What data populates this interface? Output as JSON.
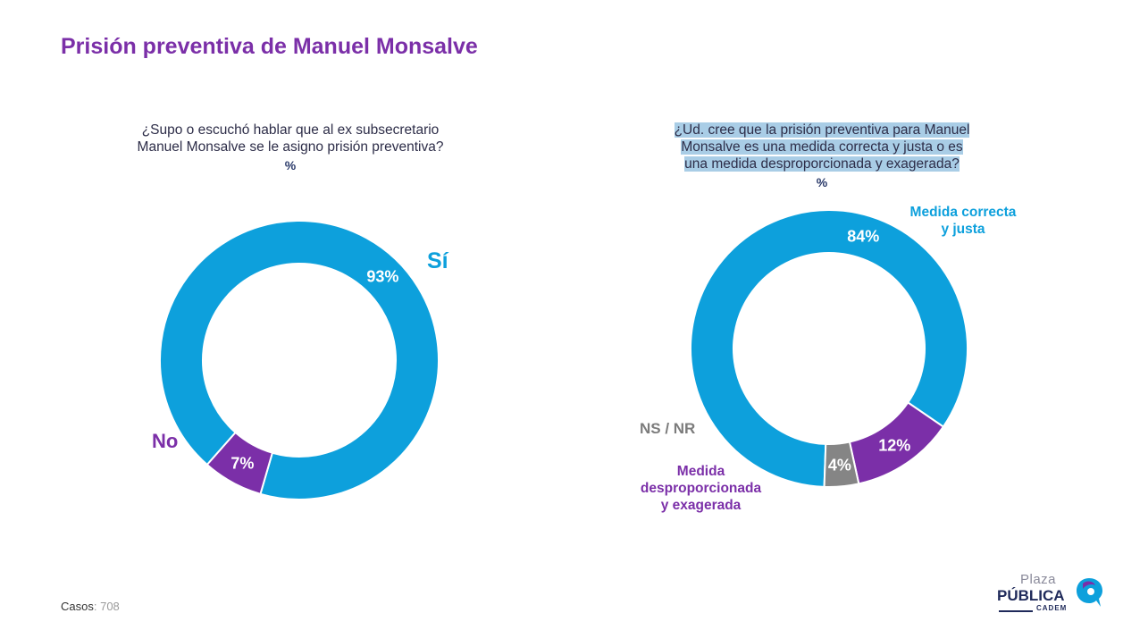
{
  "title": "Prisión preventiva de Manuel Monsalve",
  "chart_data": [
    {
      "type": "donut",
      "question": "¿Supo o escuchó hablar que al ex subsecretario Manuel Monsalve se le asigno prisión preventiva?",
      "unit": "%",
      "slices": [
        {
          "label": "Sí",
          "value": 93,
          "value_label": "93%",
          "color": "#0da0dc"
        },
        {
          "label": "No",
          "value": 7,
          "value_label": "7%",
          "color": "#7b2fa8"
        }
      ]
    },
    {
      "type": "donut",
      "question_lines": [
        "¿Ud. cree que la prisión preventiva para Manuel",
        "Monsalve es una medida correcta y justa o es",
        "una medida desproporcionada y exagerada?"
      ],
      "unit": "%",
      "slices": [
        {
          "label_lines": [
            "Medida correcta",
            "y justa"
          ],
          "value": 84,
          "value_label": "84%",
          "color": "#0da0dc"
        },
        {
          "label_lines": [
            "Medida",
            "desproporcionada",
            "y exagerada"
          ],
          "value": 12,
          "value_label": "12%",
          "color": "#7b2fa8"
        },
        {
          "label_lines": [
            "NS / NR"
          ],
          "value": 4,
          "value_label": "4%",
          "color": "#858585"
        }
      ]
    }
  ],
  "footer": {
    "label": "Casos",
    "value": ": 708"
  },
  "logo": {
    "line1": "Plaza",
    "line2": "PÚBLICA",
    "line3": "CADEM"
  },
  "colors": {
    "accent_purple": "#7b2fa8",
    "accent_blue": "#0da0dc",
    "gray": "#858585"
  }
}
